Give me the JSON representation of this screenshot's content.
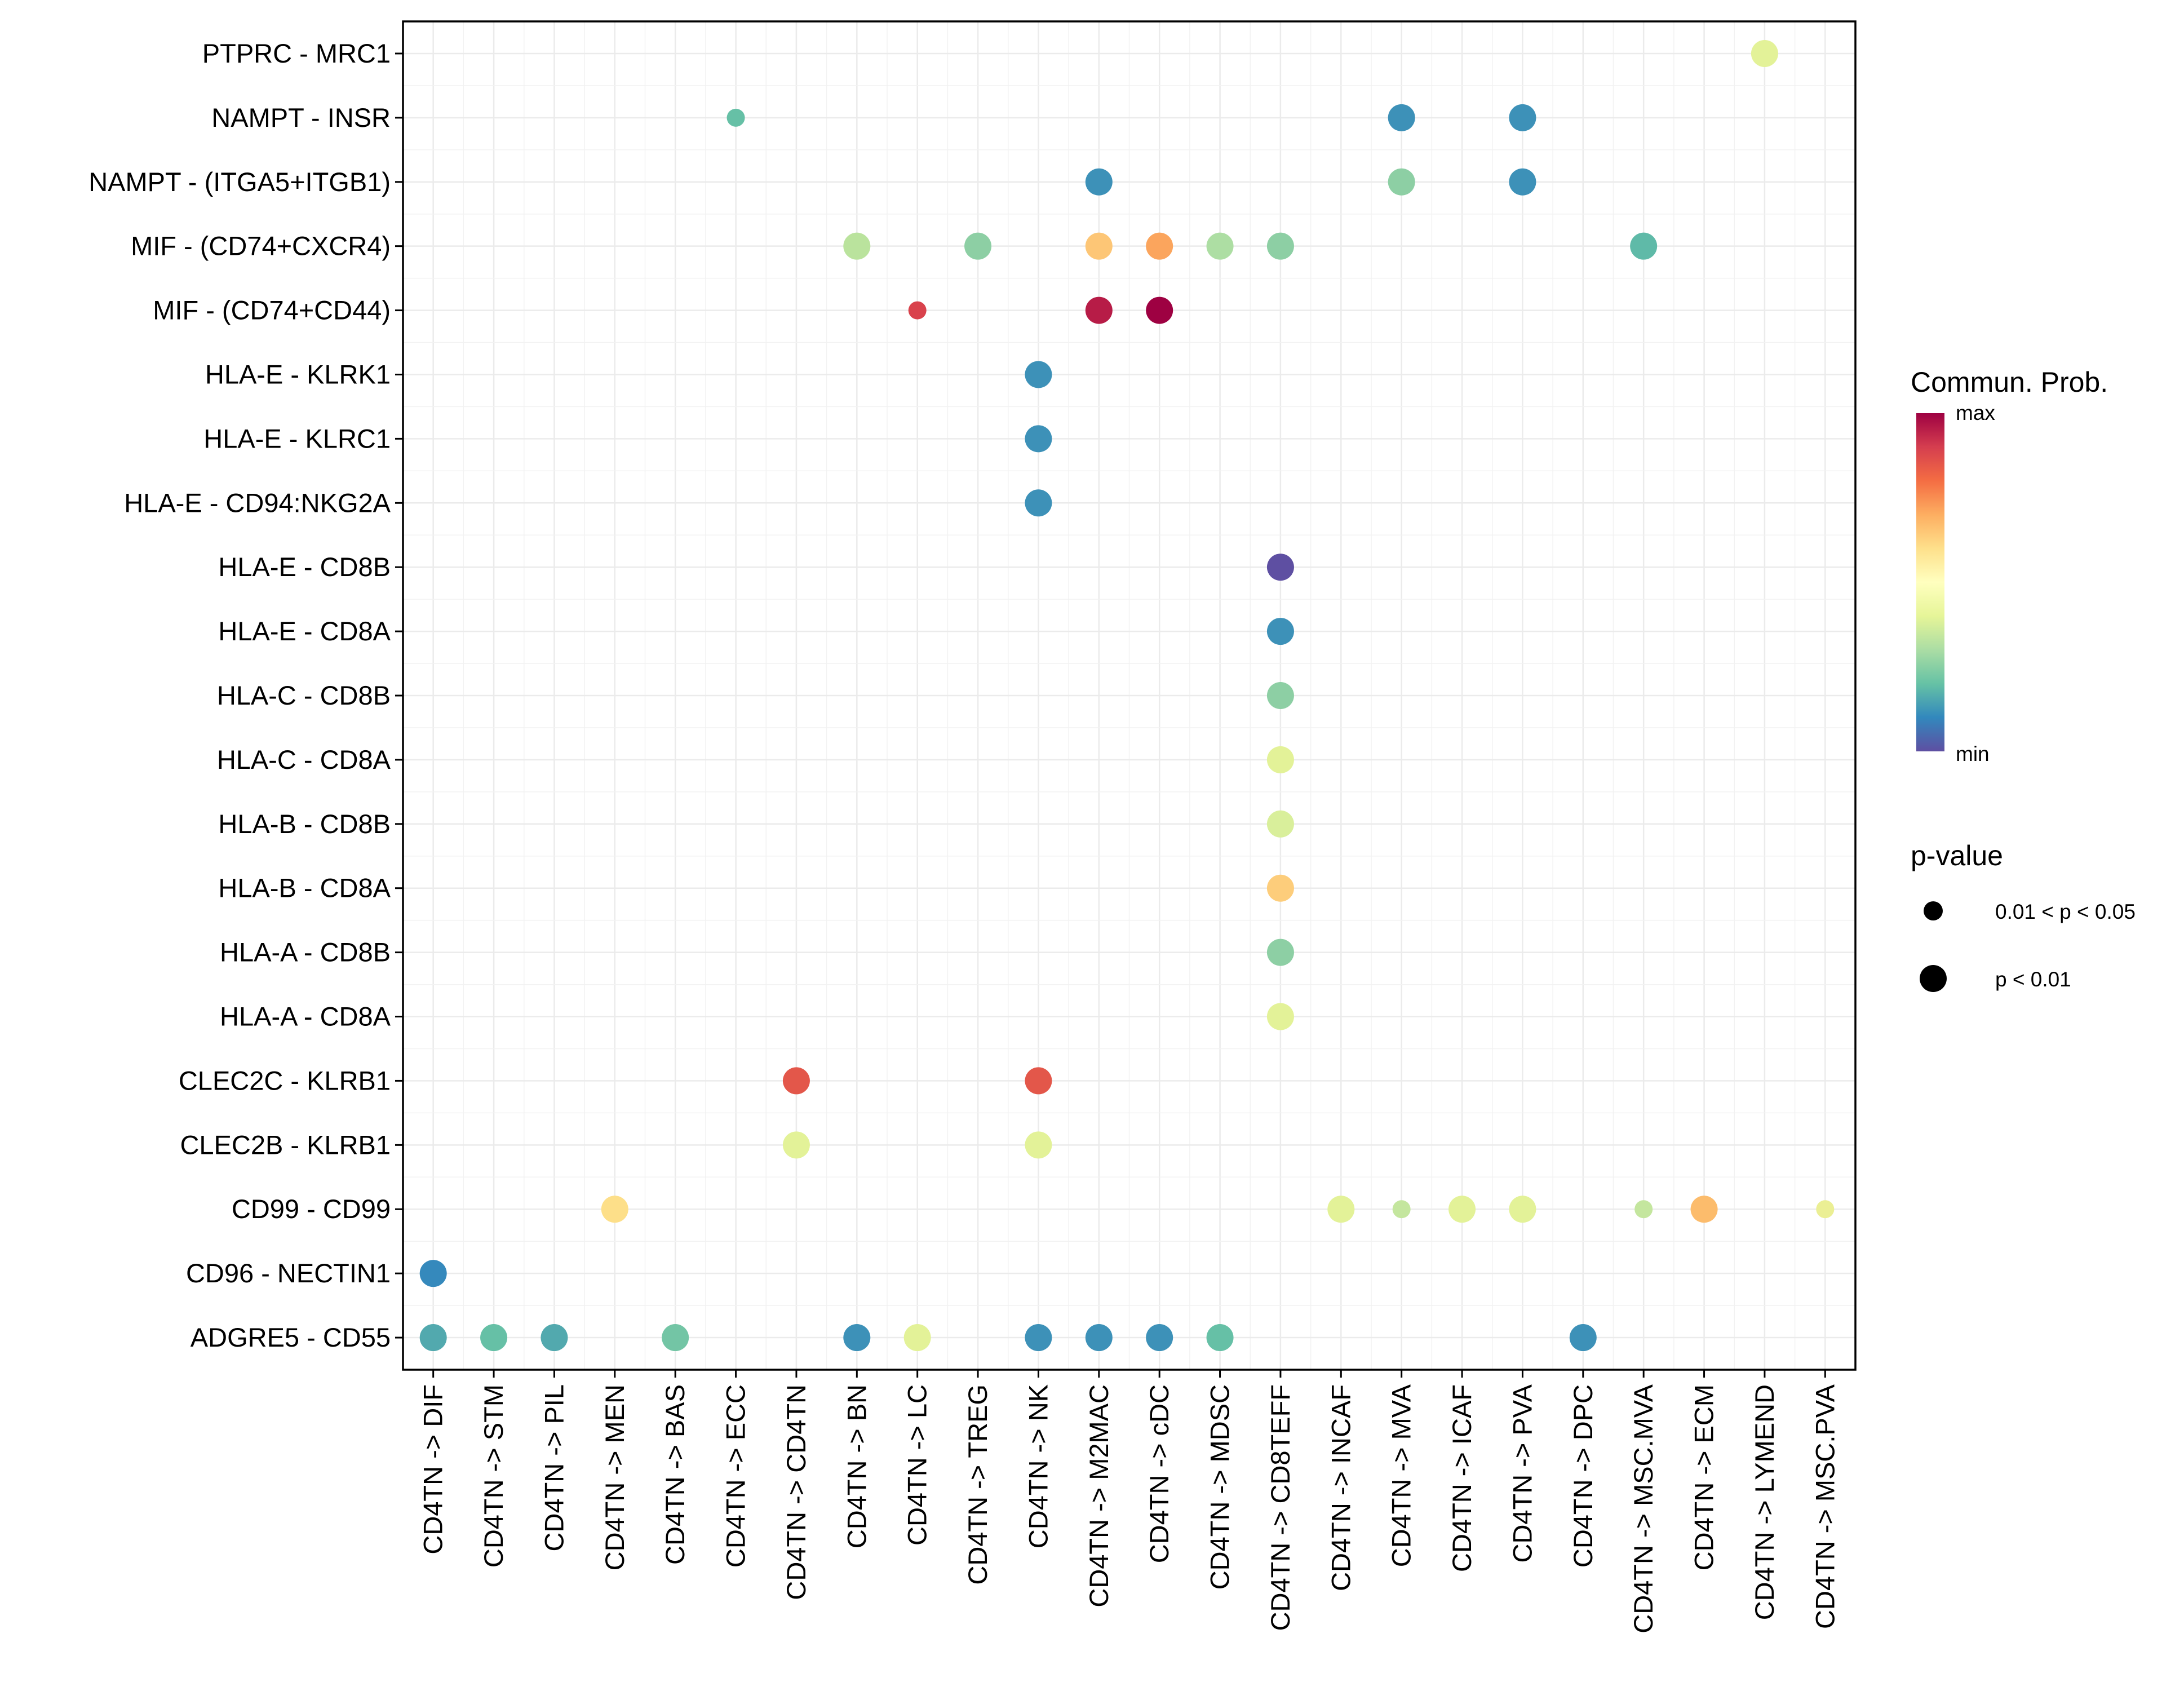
{
  "chart_data": {
    "type": "scatter",
    "subtype": "dot-plot",
    "title": "",
    "xlabel": "",
    "ylabel": "",
    "grid": true,
    "categories_x": [
      "CD4TN -> DIF",
      "CD4TN -> STM",
      "CD4TN -> PIL",
      "CD4TN -> MEN",
      "CD4TN -> BAS",
      "CD4TN -> ECC",
      "CD4TN -> CD4TN",
      "CD4TN -> BN",
      "CD4TN -> LC",
      "CD4TN -> TREG",
      "CD4TN -> NK",
      "CD4TN -> M2MAC",
      "CD4TN -> cDC",
      "CD4TN -> MDSC",
      "CD4TN -> CD8TEFF",
      "CD4TN -> INCAF",
      "CD4TN -> MVA",
      "CD4TN -> ICAF",
      "CD4TN -> PVA",
      "CD4TN -> DPC",
      "CD4TN -> MSC.MVA",
      "CD4TN -> ECM",
      "CD4TN -> LYMEND",
      "CD4TN -> MSC.PVA"
    ],
    "categories_y": [
      "PTPRC - MRC1",
      "NAMPT - INSR",
      "NAMPT - (ITGA5+ITGB1)",
      "MIF - (CD74+CXCR4)",
      "MIF - (CD74+CD44)",
      "HLA-E - KLRK1",
      "HLA-E - KLRC1",
      "HLA-E - CD94:NKG2A",
      "HLA-E - CD8B",
      "HLA-E - CD8A",
      "HLA-C - CD8B",
      "HLA-C - CD8A",
      "HLA-B - CD8B",
      "HLA-B - CD8A",
      "HLA-A - CD8B",
      "HLA-A - CD8A",
      "CLEC2C - KLRB1",
      "CLEC2B - KLRB1",
      "CD99 - CD99",
      "CD96 - NECTIN1",
      "ADGRE5 - CD55"
    ],
    "color_scale": {
      "title": "Commun. Prob.",
      "min_label": "min",
      "max_label": "max",
      "palette": [
        "#5e4fa2",
        "#3288bd",
        "#66c2a5",
        "#abdda4",
        "#e6f598",
        "#ffffbf",
        "#fee08b",
        "#fdae61",
        "#f46d43",
        "#d53e4f",
        "#9e0142"
      ]
    },
    "size_legend": {
      "title": "p-value",
      "entries": [
        {
          "label": "0.01 < p < 0.05",
          "size": "small"
        },
        {
          "label": "p < 0.01",
          "size": "large"
        }
      ]
    },
    "points": [
      {
        "y": "PTPRC - MRC1",
        "x": "CD4TN -> LYMEND",
        "prob": 0.46,
        "color": "#e3f298",
        "pval": "p < 0.01"
      },
      {
        "y": "NAMPT - INSR",
        "x": "CD4TN -> ECC",
        "prob": 0.2,
        "color": "#66c0a6",
        "pval": "0.01 < p < 0.05"
      },
      {
        "y": "NAMPT - INSR",
        "x": "CD4TN -> MVA",
        "prob": 0.12,
        "color": "#3d91b8",
        "pval": "p < 0.01"
      },
      {
        "y": "NAMPT - INSR",
        "x": "CD4TN -> PVA",
        "prob": 0.12,
        "color": "#3d91b8",
        "pval": "p < 0.01"
      },
      {
        "y": "NAMPT - (ITGA5+ITGB1)",
        "x": "CD4TN -> M2MAC",
        "prob": 0.12,
        "color": "#3d91b8",
        "pval": "p < 0.01"
      },
      {
        "y": "NAMPT - (ITGA5+ITGB1)",
        "x": "CD4TN -> MVA",
        "prob": 0.3,
        "color": "#8dcfa4",
        "pval": "p < 0.01"
      },
      {
        "y": "NAMPT - (ITGA5+ITGB1)",
        "x": "CD4TN -> PVA",
        "prob": 0.12,
        "color": "#3d91b8",
        "pval": "p < 0.01"
      },
      {
        "y": "MIF - (CD74+CXCR4)",
        "x": "CD4TN -> BN",
        "prob": 0.36,
        "color": "#bae39d",
        "pval": "p < 0.01"
      },
      {
        "y": "MIF - (CD74+CXCR4)",
        "x": "CD4TN -> TREG",
        "prob": 0.3,
        "color": "#8dcfa4",
        "pval": "p < 0.01"
      },
      {
        "y": "MIF - (CD74+CXCR4)",
        "x": "CD4TN -> M2MAC",
        "prob": 0.64,
        "color": "#fdc676",
        "pval": "p < 0.01"
      },
      {
        "y": "MIF - (CD74+CXCR4)",
        "x": "CD4TN -> cDC",
        "prob": 0.7,
        "color": "#fba55d",
        "pval": "p < 0.01"
      },
      {
        "y": "MIF - (CD74+CXCR4)",
        "x": "CD4TN -> MDSC",
        "prob": 0.34,
        "color": "#addea3",
        "pval": "p < 0.01"
      },
      {
        "y": "MIF - (CD74+CXCR4)",
        "x": "CD4TN -> CD8TEFF",
        "prob": 0.3,
        "color": "#8dcfa4",
        "pval": "p < 0.01"
      },
      {
        "y": "MIF - (CD74+CXCR4)",
        "x": "CD4TN -> MSC.MVA",
        "prob": 0.22,
        "color": "#5fbaa8",
        "pval": "p < 0.01"
      },
      {
        "y": "MIF - (CD74+CD44)",
        "x": "CD4TN -> LC",
        "prob": 0.86,
        "color": "#d9424c",
        "pval": "0.01 < p < 0.05"
      },
      {
        "y": "MIF - (CD74+CD44)",
        "x": "CD4TN -> M2MAC",
        "prob": 0.94,
        "color": "#b71c47",
        "pval": "p < 0.01"
      },
      {
        "y": "MIF - (CD74+CD44)",
        "x": "CD4TN -> cDC",
        "prob": 1.0,
        "color": "#9e0142",
        "pval": "p < 0.01"
      },
      {
        "y": "HLA-E - KLRK1",
        "x": "CD4TN -> NK",
        "prob": 0.12,
        "color": "#3d91b8",
        "pval": "p < 0.01"
      },
      {
        "y": "HLA-E - KLRC1",
        "x": "CD4TN -> NK",
        "prob": 0.12,
        "color": "#3d91b8",
        "pval": "p < 0.01"
      },
      {
        "y": "HLA-E - CD94:NKG2A",
        "x": "CD4TN -> NK",
        "prob": 0.12,
        "color": "#3d91b8",
        "pval": "p < 0.01"
      },
      {
        "y": "HLA-E - CD8B",
        "x": "CD4TN -> CD8TEFF",
        "prob": 0.0,
        "color": "#5e4fa2",
        "pval": "p < 0.01"
      },
      {
        "y": "HLA-E - CD8A",
        "x": "CD4TN -> CD8TEFF",
        "prob": 0.12,
        "color": "#3d91b8",
        "pval": "p < 0.01"
      },
      {
        "y": "HLA-C - CD8B",
        "x": "CD4TN -> CD8TEFF",
        "prob": 0.3,
        "color": "#8dcfa4",
        "pval": "p < 0.01"
      },
      {
        "y": "HLA-C - CD8A",
        "x": "CD4TN -> CD8TEFF",
        "prob": 0.46,
        "color": "#e3f298",
        "pval": "p < 0.01"
      },
      {
        "y": "HLA-B - CD8B",
        "x": "CD4TN -> CD8TEFF",
        "prob": 0.42,
        "color": "#d9ef9b",
        "pval": "p < 0.01"
      },
      {
        "y": "HLA-B - CD8A",
        "x": "CD4TN -> CD8TEFF",
        "prob": 0.64,
        "color": "#fdcd7b",
        "pval": "p < 0.01"
      },
      {
        "y": "HLA-A - CD8B",
        "x": "CD4TN -> CD8TEFF",
        "prob": 0.3,
        "color": "#8dcfa4",
        "pval": "p < 0.01"
      },
      {
        "y": "HLA-A - CD8A",
        "x": "CD4TN -> CD8TEFF",
        "prob": 0.46,
        "color": "#e3f298",
        "pval": "p < 0.01"
      },
      {
        "y": "CLEC2C - KLRB1",
        "x": "CD4TN -> CD4TN",
        "prob": 0.82,
        "color": "#e3574a",
        "pval": "p < 0.01"
      },
      {
        "y": "CLEC2C - KLRB1",
        "x": "CD4TN -> NK",
        "prob": 0.82,
        "color": "#e3574a",
        "pval": "p < 0.01"
      },
      {
        "y": "CLEC2B - KLRB1",
        "x": "CD4TN -> CD4TN",
        "prob": 0.46,
        "color": "#e3f298",
        "pval": "p < 0.01"
      },
      {
        "y": "CLEC2B - KLRB1",
        "x": "CD4TN -> NK",
        "prob": 0.46,
        "color": "#e3f298",
        "pval": "p < 0.01"
      },
      {
        "y": "CD99 - CD99",
        "x": "CD4TN -> MEN",
        "prob": 0.6,
        "color": "#fddf89",
        "pval": "p < 0.01"
      },
      {
        "y": "CD99 - CD99",
        "x": "CD4TN -> INCAF",
        "prob": 0.46,
        "color": "#e3f298",
        "pval": "p < 0.01"
      },
      {
        "y": "CD99 - CD99",
        "x": "CD4TN -> MVA",
        "prob": 0.38,
        "color": "#c4e69e",
        "pval": "0.01 < p < 0.05"
      },
      {
        "y": "CD99 - CD99",
        "x": "CD4TN -> ICAF",
        "prob": 0.46,
        "color": "#e3f298",
        "pval": "p < 0.01"
      },
      {
        "y": "CD99 - CD99",
        "x": "CD4TN -> PVA",
        "prob": 0.46,
        "color": "#e3f298",
        "pval": "p < 0.01"
      },
      {
        "y": "CD99 - CD99",
        "x": "CD4TN -> MSC.MVA",
        "prob": 0.38,
        "color": "#c4e69e",
        "pval": "0.01 < p < 0.05"
      },
      {
        "y": "CD99 - CD99",
        "x": "CD4TN -> ECM",
        "prob": 0.68,
        "color": "#fcbc6c",
        "pval": "p < 0.01"
      },
      {
        "y": "CD99 - CD99",
        "x": "CD4TN -> MSC.PVA",
        "prob": 0.5,
        "color": "#ebef94",
        "pval": "0.01 < p < 0.05"
      },
      {
        "y": "CD96 - NECTIN1",
        "x": "CD4TN -> DIF",
        "prob": 0.1,
        "color": "#3589bc",
        "pval": "p < 0.01"
      },
      {
        "y": "ADGRE5 - CD55",
        "x": "CD4TN -> DIF",
        "prob": 0.16,
        "color": "#52a9ae",
        "pval": "p < 0.01"
      },
      {
        "y": "ADGRE5 - CD55",
        "x": "CD4TN -> STM",
        "prob": 0.2,
        "color": "#66c0a6",
        "pval": "p < 0.01"
      },
      {
        "y": "ADGRE5 - CD55",
        "x": "CD4TN -> PIL",
        "prob": 0.16,
        "color": "#52a9ae",
        "pval": "p < 0.01"
      },
      {
        "y": "ADGRE5 - CD55",
        "x": "CD4TN -> BAS",
        "prob": 0.24,
        "color": "#73c5a5",
        "pval": "p < 0.01"
      },
      {
        "y": "ADGRE5 - CD55",
        "x": "CD4TN -> BN",
        "prob": 0.12,
        "color": "#3d91b8",
        "pval": "p < 0.01"
      },
      {
        "y": "ADGRE5 - CD55",
        "x": "CD4TN -> LC",
        "prob": 0.46,
        "color": "#e3f298",
        "pval": "p < 0.01"
      },
      {
        "y": "ADGRE5 - CD55",
        "x": "CD4TN -> NK",
        "prob": 0.12,
        "color": "#3d91b8",
        "pval": "p < 0.01"
      },
      {
        "y": "ADGRE5 - CD55",
        "x": "CD4TN -> M2MAC",
        "prob": 0.12,
        "color": "#3d91b8",
        "pval": "p < 0.01"
      },
      {
        "y": "ADGRE5 - CD55",
        "x": "CD4TN -> cDC",
        "prob": 0.12,
        "color": "#3d91b8",
        "pval": "p < 0.01"
      },
      {
        "y": "ADGRE5 - CD55",
        "x": "CD4TN -> MDSC",
        "prob": 0.2,
        "color": "#66c0a6",
        "pval": "p < 0.01"
      },
      {
        "y": "ADGRE5 - CD55",
        "x": "CD4TN -> DPC",
        "prob": 0.12,
        "color": "#3d91b8",
        "pval": "p < 0.01"
      }
    ]
  }
}
